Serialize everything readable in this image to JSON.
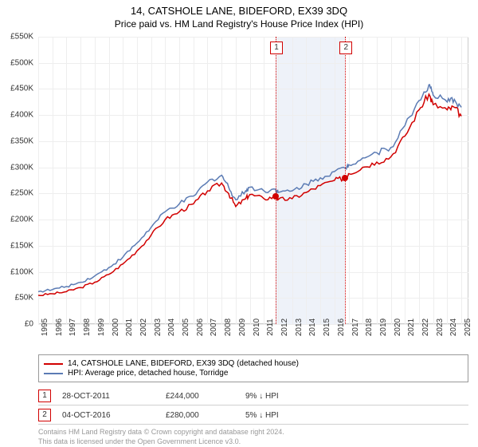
{
  "title": "14, CATSHOLE LANE, BIDEFORD, EX39 3DQ",
  "subtitle": "Price paid vs. HM Land Registry's House Price Index (HPI)",
  "chart": {
    "type": "line",
    "xlim": [
      1995,
      2025.5
    ],
    "ylim": [
      0,
      550000
    ],
    "ytick_step": 50000,
    "ytick_labels": [
      "£0",
      "£50K",
      "£100K",
      "£150K",
      "£200K",
      "£250K",
      "£300K",
      "£350K",
      "£400K",
      "£450K",
      "£500K",
      "£550K"
    ],
    "xtick_step": 1,
    "xtick_start": 1995,
    "xtick_end": 2025,
    "grid_color": "#eeeeee",
    "background_color": "#ffffff",
    "band": {
      "start": 2011.83,
      "end": 2016.76,
      "color": "#eef2f9"
    },
    "series": [
      {
        "key": "property",
        "label": "14, CATSHOLE LANE, BIDEFORD, EX39 3DQ (detached house)",
        "color": "#d10000",
        "width": 1.5,
        "points": [
          [
            1995,
            55000
          ],
          [
            1996,
            58000
          ],
          [
            1997,
            62000
          ],
          [
            1998,
            70000
          ],
          [
            1999,
            80000
          ],
          [
            2000,
            95000
          ],
          [
            2001,
            115000
          ],
          [
            2002,
            140000
          ],
          [
            2003,
            170000
          ],
          [
            2004,
            200000
          ],
          [
            2005,
            215000
          ],
          [
            2006,
            230000
          ],
          [
            2007,
            255000
          ],
          [
            2008,
            270000
          ],
          [
            2008.5,
            250000
          ],
          [
            2009,
            225000
          ],
          [
            2009.7,
            240000
          ],
          [
            2010,
            248000
          ],
          [
            2011,
            240000
          ],
          [
            2011.83,
            244000
          ],
          [
            2012,
            238000
          ],
          [
            2013,
            240000
          ],
          [
            2014,
            252000
          ],
          [
            2015,
            265000
          ],
          [
            2016,
            275000
          ],
          [
            2016.76,
            280000
          ],
          [
            2017,
            288000
          ],
          [
            2018,
            300000
          ],
          [
            2019,
            310000
          ],
          [
            2020,
            320000
          ],
          [
            2021,
            360000
          ],
          [
            2022,
            410000
          ],
          [
            2022.7,
            440000
          ],
          [
            2023,
            420000
          ],
          [
            2024,
            410000
          ],
          [
            2024.5,
            415000
          ],
          [
            2025,
            398000
          ]
        ]
      },
      {
        "key": "hpi",
        "label": "HPI: Average price, detached house, Torridge",
        "color": "#5b7bb4",
        "width": 1.5,
        "points": [
          [
            1995,
            62000
          ],
          [
            1996,
            66000
          ],
          [
            1997,
            72000
          ],
          [
            1998,
            80000
          ],
          [
            1999,
            92000
          ],
          [
            2000,
            108000
          ],
          [
            2001,
            128000
          ],
          [
            2002,
            155000
          ],
          [
            2003,
            185000
          ],
          [
            2004,
            215000
          ],
          [
            2005,
            230000
          ],
          [
            2006,
            245000
          ],
          [
            2007,
            272000
          ],
          [
            2008,
            285000
          ],
          [
            2008.5,
            262000
          ],
          [
            2009,
            238000
          ],
          [
            2009.7,
            255000
          ],
          [
            2010,
            262000
          ],
          [
            2011,
            255000
          ],
          [
            2011.83,
            258000
          ],
          [
            2012,
            252000
          ],
          [
            2013,
            255000
          ],
          [
            2014,
            268000
          ],
          [
            2015,
            280000
          ],
          [
            2016,
            292000
          ],
          [
            2016.76,
            298000
          ],
          [
            2017,
            305000
          ],
          [
            2018,
            318000
          ],
          [
            2019,
            328000
          ],
          [
            2020,
            338000
          ],
          [
            2021,
            380000
          ],
          [
            2022,
            428000
          ],
          [
            2022.7,
            458000
          ],
          [
            2023,
            438000
          ],
          [
            2024,
            425000
          ],
          [
            2024.5,
            430000
          ],
          [
            2025,
            415000
          ]
        ]
      }
    ],
    "transactions": [
      {
        "n": "1",
        "x": 2011.83,
        "date": "28-OCT-2011",
        "price_val": 244000,
        "price": "£244,000",
        "delta": "9% ↓ HPI",
        "color": "#d10000"
      },
      {
        "n": "2",
        "x": 2016.76,
        "date": "04-OCT-2016",
        "price_val": 280000,
        "price": "£280,000",
        "delta": "5% ↓ HPI",
        "color": "#d10000"
      }
    ]
  },
  "attribution": {
    "line1": "Contains HM Land Registry data © Crown copyright and database right 2024.",
    "line2": "This data is licensed under the Open Government Licence v3.0."
  }
}
